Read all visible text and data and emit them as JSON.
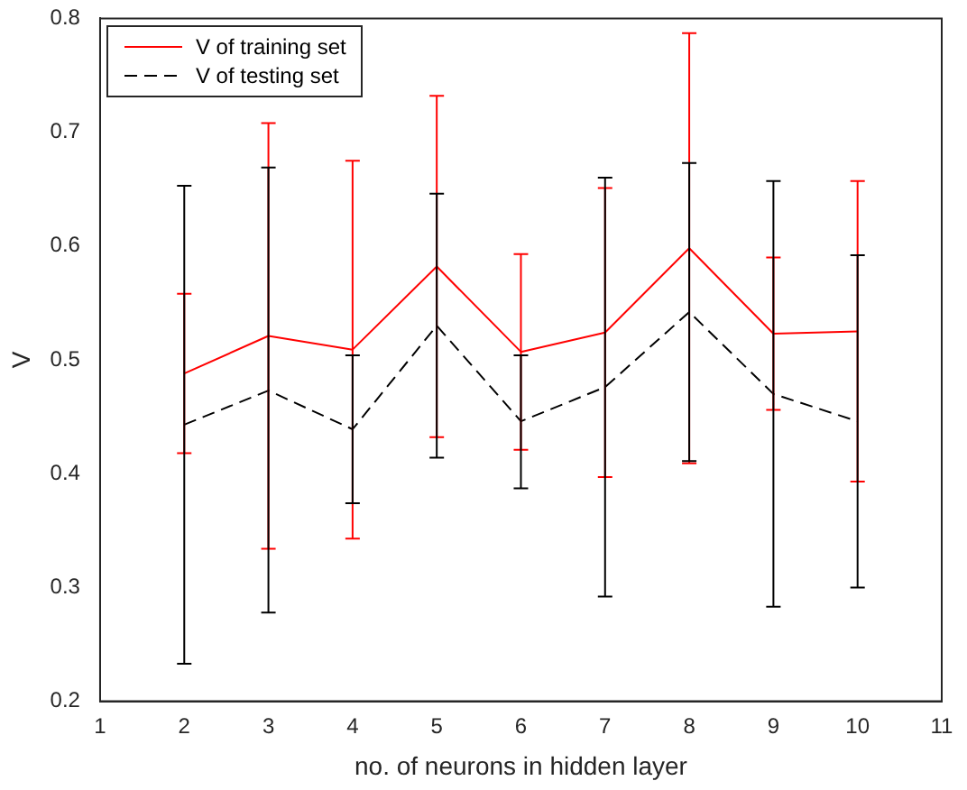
{
  "chart_data": {
    "type": "line",
    "xlabel": "no. of neurons in hidden layer",
    "ylabel": "V",
    "x": [
      2,
      3,
      4,
      5,
      6,
      7,
      8,
      9,
      10
    ],
    "series": [
      {
        "name": "V of training set",
        "color": "#ff0000",
        "line_style": "solid",
        "values": [
          0.488,
          0.521,
          0.509,
          0.582,
          0.507,
          0.524,
          0.598,
          0.523,
          0.525
        ],
        "errors": [
          [
            0.418,
            0.558
          ],
          [
            0.334,
            0.708
          ],
          [
            0.343,
            0.675
          ],
          [
            0.432,
            0.732
          ],
          [
            0.421,
            0.593
          ],
          [
            0.397,
            0.651
          ],
          [
            0.409,
            0.787
          ],
          [
            0.456,
            0.59
          ],
          [
            0.393,
            0.657
          ]
        ]
      },
      {
        "name": "V of testing set",
        "color": "#000000",
        "line_style": "dashed",
        "values": [
          0.443,
          0.473,
          0.439,
          0.53,
          0.446,
          0.476,
          0.542,
          0.47,
          0.446
        ],
        "errors": [
          [
            0.233,
            0.653
          ],
          [
            0.278,
            0.669
          ],
          [
            0.374,
            0.504
          ],
          [
            0.414,
            0.646
          ],
          [
            0.387,
            0.504
          ],
          [
            0.292,
            0.66
          ],
          [
            0.411,
            0.673
          ],
          [
            0.283,
            0.657
          ],
          [
            0.3,
            0.592
          ]
        ]
      }
    ],
    "xlim": [
      1,
      11
    ],
    "xticks": [
      1,
      2,
      3,
      4,
      5,
      6,
      7,
      8,
      9,
      10,
      11
    ],
    "ylim": [
      0.2,
      0.8
    ],
    "yticks": [
      0.2,
      0.3,
      0.4,
      0.5,
      0.6,
      0.7,
      0.8
    ],
    "grid": false,
    "legend": "top left",
    "marker": "none"
  }
}
